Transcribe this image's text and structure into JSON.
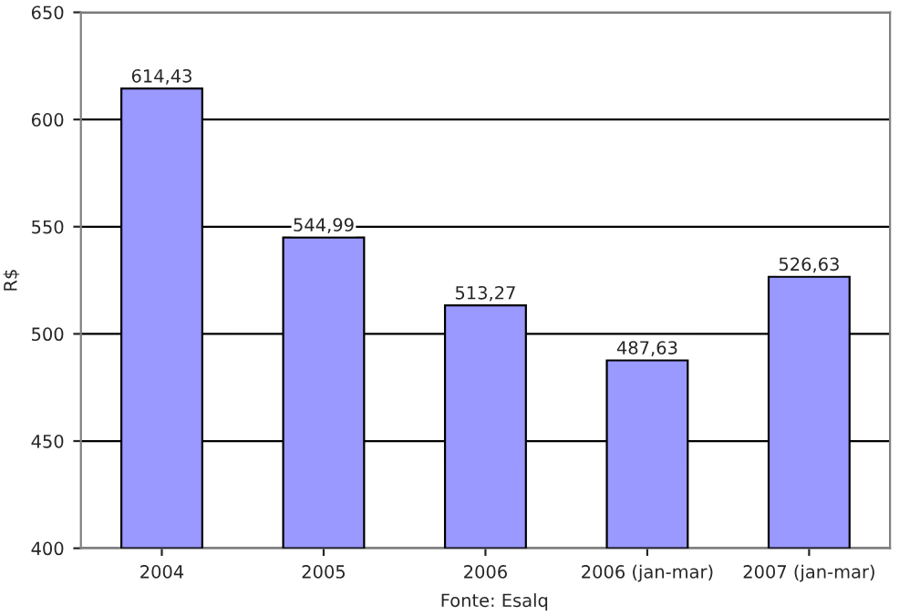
{
  "chart_data": {
    "type": "bar",
    "ylabel": "R$",
    "categories": [
      "2004",
      "2005",
      "2006",
      "2006 (jan-mar)",
      "2007 (jan-mar)"
    ],
    "values": [
      614.43,
      544.99,
      513.27,
      487.63,
      526.63
    ],
    "value_labels": [
      "614,43",
      "544,99",
      "513,27",
      "487,63",
      "526,63"
    ],
    "color": "#9999ff",
    "ylim": [
      400,
      650
    ],
    "yticks": [
      400,
      450,
      500,
      550,
      600,
      650
    ],
    "grid": "y",
    "legend": false,
    "annotations": [
      "Fonte: Esalq"
    ]
  }
}
